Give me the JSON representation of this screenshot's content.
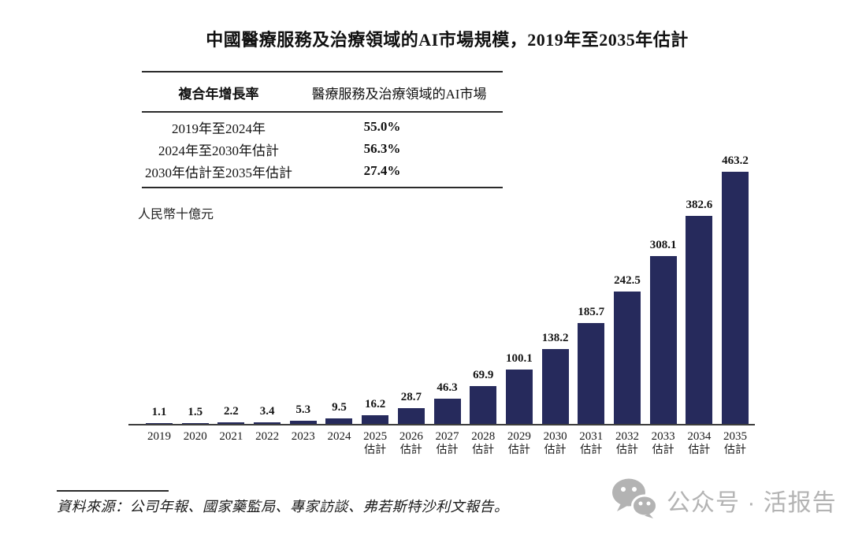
{
  "title": "中國醫療服務及治療領域的AI市場規模，2019年至2035年估計",
  "cagr_table": {
    "col1_header": "複合年增長率",
    "col2_header": "醫療服務及治療領域的AI市場",
    "rows": [
      {
        "period": "2019年至2024年",
        "cagr": "55.0%"
      },
      {
        "period": "2024年至2030年估計",
        "cagr": "56.3%"
      },
      {
        "period": "2030年估計至2035年估計",
        "cagr": "27.4%"
      }
    ]
  },
  "unit_label": "人民幣十億元",
  "chart_data": {
    "type": "bar",
    "title": "中國醫療服務及治療領域的AI市場規模，2019年至2035年估計",
    "ylabel": "人民幣十億元",
    "categories": [
      "2019",
      "2020",
      "2021",
      "2022",
      "2023",
      "2024",
      "2025",
      "2026",
      "2027",
      "2028",
      "2029",
      "2030",
      "2031",
      "2032",
      "2033",
      "2034",
      "2035"
    ],
    "category_sublabels": [
      "",
      "",
      "",
      "",
      "",
      "",
      "估計",
      "估計",
      "估計",
      "估計",
      "估計",
      "估計",
      "估計",
      "估計",
      "估計",
      "估計",
      "估計"
    ],
    "values": [
      1.1,
      1.5,
      2.2,
      3.4,
      5.3,
      9.5,
      16.2,
      28.7,
      46.3,
      69.9,
      100.1,
      138.2,
      185.7,
      242.5,
      308.1,
      382.6,
      463.2
    ],
    "ylim": [
      0,
      480
    ],
    "grid": false,
    "legend": null,
    "bar_color": "#262a5c",
    "value_label_color": "#141414"
  },
  "source_note": "資料來源：公司年報、國家藥監局、專家訪談、弗若斯特沙利文報告。",
  "watermark": {
    "icon": "wechat-icon",
    "text": "公众号 · 活报告",
    "color": "#b3b3b3"
  }
}
